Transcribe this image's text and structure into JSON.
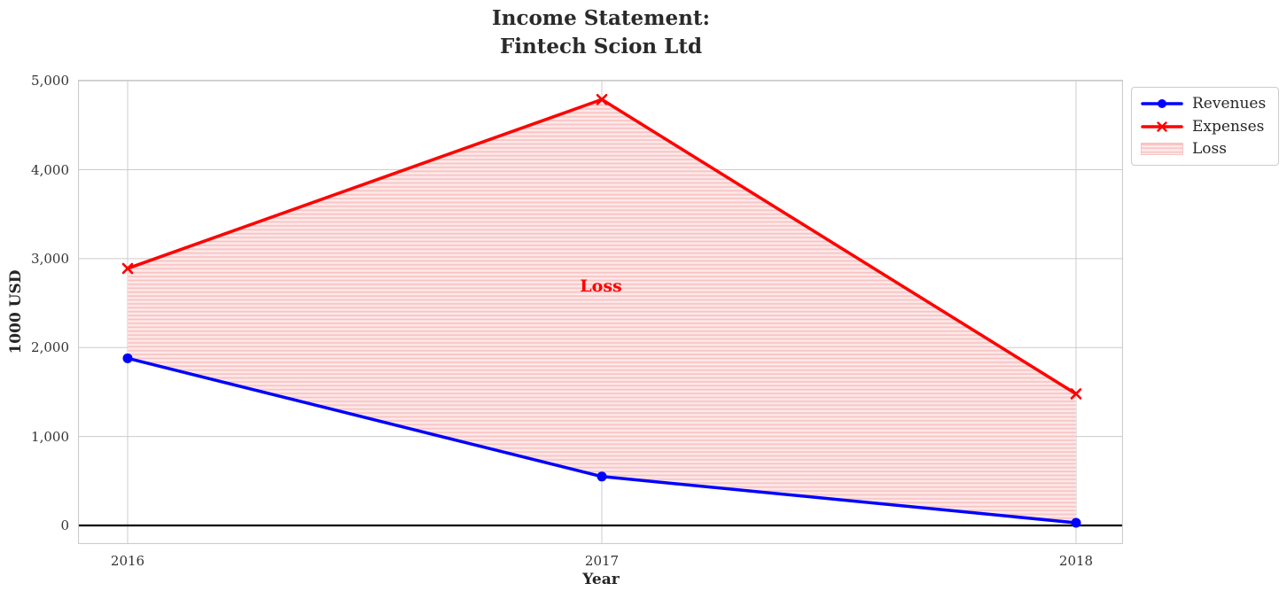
{
  "title": {
    "line1": "Income Statement:",
    "line2": "Fintech Scion Ltd"
  },
  "chart_data": {
    "type": "line",
    "x": [
      2016,
      2017,
      2018
    ],
    "categories": [
      "2016",
      "2017",
      "2018"
    ],
    "series": [
      {
        "name": "Revenues",
        "color": "#0000ff",
        "marker": "circle",
        "values": [
          1880,
          550,
          30
        ]
      },
      {
        "name": "Expenses",
        "color": "#ff0000",
        "marker": "x",
        "values": [
          2890,
          4790,
          1480
        ]
      }
    ],
    "fill_between": {
      "label": "Loss",
      "annotation": "Loss",
      "annotation_color": "#ff0000",
      "fill_base": "#fde8e8",
      "hatch_color": "#f8c4c4",
      "hatch": "horizontal"
    },
    "xlabel": "Year",
    "ylabel": "1000 USD",
    "ylim": [
      0,
      5000
    ],
    "yticks": [
      0,
      1000,
      2000,
      3000,
      4000,
      5000
    ],
    "ytick_labels": [
      "0",
      "1,000",
      "2,000",
      "3,000",
      "4,000",
      "5,000"
    ],
    "grid": true,
    "grid_color": "#cccccc",
    "zero_line": true,
    "zero_line_color": "#000000",
    "legend_position": "upper right outside"
  },
  "legend": {
    "items": [
      {
        "label": "Revenues"
      },
      {
        "label": "Expenses"
      },
      {
        "label": "Loss"
      }
    ]
  }
}
